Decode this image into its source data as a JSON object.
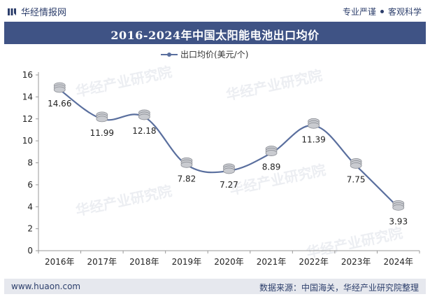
{
  "header": {
    "brand": "华经情报网",
    "tag_left": "专业严谨",
    "tag_right": "客观科学"
  },
  "title": "2016-2024年中国太阳能电池出口均价",
  "footer": {
    "site": "www.huaon.com",
    "source": "数据来源：中国海关，华经产业研究院整理"
  },
  "watermark": "华经产业研究院",
  "colors": {
    "line": "#5a6f9e",
    "title_bar": "#3f5385",
    "coin": "#c9cbd0"
  },
  "chart_data": {
    "type": "line",
    "title": "2016-2024年中国太阳能电池出口均价",
    "categories": [
      "2016年",
      "2017年",
      "2018年",
      "2019年",
      "2020年",
      "2021年",
      "2022年",
      "2023年",
      "2024年"
    ],
    "series": [
      {
        "name": "出口均价(美元/个)",
        "values": [
          14.66,
          11.99,
          12.18,
          7.82,
          7.27,
          8.89,
          11.39,
          7.75,
          3.93
        ]
      }
    ],
    "data_labels": [
      "14.66",
      "11.99",
      "12.18",
      "7.82",
      "7.27",
      "8.89",
      "11.39",
      "7.75",
      "3.93"
    ],
    "y_ticks": [
      "0",
      "2",
      "4",
      "6",
      "8",
      "10",
      "12",
      "14",
      "16"
    ],
    "ylim": [
      0,
      16
    ],
    "legend": "top-center",
    "grid": false
  }
}
